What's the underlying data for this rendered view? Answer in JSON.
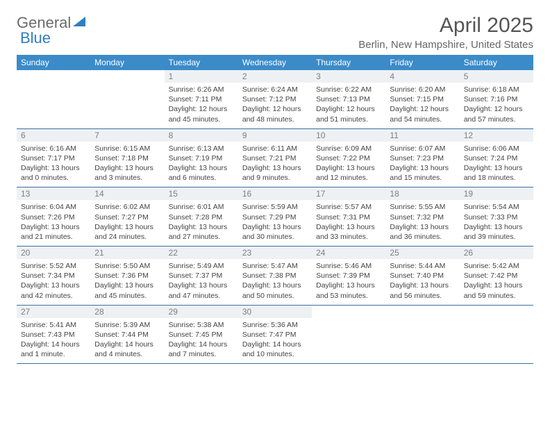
{
  "brand": {
    "part1": "General",
    "part2": "Blue"
  },
  "title": "April 2025",
  "location": "Berlin, New Hampshire, United States",
  "colors": {
    "header_bg": "#3b8bc9",
    "header_text": "#ffffff",
    "daynum_bg": "#eef1f3",
    "daynum_text": "#7a7f85",
    "cell_border": "#3b6fa0",
    "body_text": "#444444",
    "title_text": "#555555",
    "logo_gray": "#6b6b6b",
    "logo_blue": "#2f7fc2"
  },
  "days_of_week": [
    "Sunday",
    "Monday",
    "Tuesday",
    "Wednesday",
    "Thursday",
    "Friday",
    "Saturday"
  ],
  "weeks": [
    [
      null,
      null,
      {
        "n": "1",
        "sr": "Sunrise: 6:26 AM",
        "ss": "Sunset: 7:11 PM",
        "dl1": "Daylight: 12 hours",
        "dl2": "and 45 minutes."
      },
      {
        "n": "2",
        "sr": "Sunrise: 6:24 AM",
        "ss": "Sunset: 7:12 PM",
        "dl1": "Daylight: 12 hours",
        "dl2": "and 48 minutes."
      },
      {
        "n": "3",
        "sr": "Sunrise: 6:22 AM",
        "ss": "Sunset: 7:13 PM",
        "dl1": "Daylight: 12 hours",
        "dl2": "and 51 minutes."
      },
      {
        "n": "4",
        "sr": "Sunrise: 6:20 AM",
        "ss": "Sunset: 7:15 PM",
        "dl1": "Daylight: 12 hours",
        "dl2": "and 54 minutes."
      },
      {
        "n": "5",
        "sr": "Sunrise: 6:18 AM",
        "ss": "Sunset: 7:16 PM",
        "dl1": "Daylight: 12 hours",
        "dl2": "and 57 minutes."
      }
    ],
    [
      {
        "n": "6",
        "sr": "Sunrise: 6:16 AM",
        "ss": "Sunset: 7:17 PM",
        "dl1": "Daylight: 13 hours",
        "dl2": "and 0 minutes."
      },
      {
        "n": "7",
        "sr": "Sunrise: 6:15 AM",
        "ss": "Sunset: 7:18 PM",
        "dl1": "Daylight: 13 hours",
        "dl2": "and 3 minutes."
      },
      {
        "n": "8",
        "sr": "Sunrise: 6:13 AM",
        "ss": "Sunset: 7:19 PM",
        "dl1": "Daylight: 13 hours",
        "dl2": "and 6 minutes."
      },
      {
        "n": "9",
        "sr": "Sunrise: 6:11 AM",
        "ss": "Sunset: 7:21 PM",
        "dl1": "Daylight: 13 hours",
        "dl2": "and 9 minutes."
      },
      {
        "n": "10",
        "sr": "Sunrise: 6:09 AM",
        "ss": "Sunset: 7:22 PM",
        "dl1": "Daylight: 13 hours",
        "dl2": "and 12 minutes."
      },
      {
        "n": "11",
        "sr": "Sunrise: 6:07 AM",
        "ss": "Sunset: 7:23 PM",
        "dl1": "Daylight: 13 hours",
        "dl2": "and 15 minutes."
      },
      {
        "n": "12",
        "sr": "Sunrise: 6:06 AM",
        "ss": "Sunset: 7:24 PM",
        "dl1": "Daylight: 13 hours",
        "dl2": "and 18 minutes."
      }
    ],
    [
      {
        "n": "13",
        "sr": "Sunrise: 6:04 AM",
        "ss": "Sunset: 7:26 PM",
        "dl1": "Daylight: 13 hours",
        "dl2": "and 21 minutes."
      },
      {
        "n": "14",
        "sr": "Sunrise: 6:02 AM",
        "ss": "Sunset: 7:27 PM",
        "dl1": "Daylight: 13 hours",
        "dl2": "and 24 minutes."
      },
      {
        "n": "15",
        "sr": "Sunrise: 6:01 AM",
        "ss": "Sunset: 7:28 PM",
        "dl1": "Daylight: 13 hours",
        "dl2": "and 27 minutes."
      },
      {
        "n": "16",
        "sr": "Sunrise: 5:59 AM",
        "ss": "Sunset: 7:29 PM",
        "dl1": "Daylight: 13 hours",
        "dl2": "and 30 minutes."
      },
      {
        "n": "17",
        "sr": "Sunrise: 5:57 AM",
        "ss": "Sunset: 7:31 PM",
        "dl1": "Daylight: 13 hours",
        "dl2": "and 33 minutes."
      },
      {
        "n": "18",
        "sr": "Sunrise: 5:55 AM",
        "ss": "Sunset: 7:32 PM",
        "dl1": "Daylight: 13 hours",
        "dl2": "and 36 minutes."
      },
      {
        "n": "19",
        "sr": "Sunrise: 5:54 AM",
        "ss": "Sunset: 7:33 PM",
        "dl1": "Daylight: 13 hours",
        "dl2": "and 39 minutes."
      }
    ],
    [
      {
        "n": "20",
        "sr": "Sunrise: 5:52 AM",
        "ss": "Sunset: 7:34 PM",
        "dl1": "Daylight: 13 hours",
        "dl2": "and 42 minutes."
      },
      {
        "n": "21",
        "sr": "Sunrise: 5:50 AM",
        "ss": "Sunset: 7:36 PM",
        "dl1": "Daylight: 13 hours",
        "dl2": "and 45 minutes."
      },
      {
        "n": "22",
        "sr": "Sunrise: 5:49 AM",
        "ss": "Sunset: 7:37 PM",
        "dl1": "Daylight: 13 hours",
        "dl2": "and 47 minutes."
      },
      {
        "n": "23",
        "sr": "Sunrise: 5:47 AM",
        "ss": "Sunset: 7:38 PM",
        "dl1": "Daylight: 13 hours",
        "dl2": "and 50 minutes."
      },
      {
        "n": "24",
        "sr": "Sunrise: 5:46 AM",
        "ss": "Sunset: 7:39 PM",
        "dl1": "Daylight: 13 hours",
        "dl2": "and 53 minutes."
      },
      {
        "n": "25",
        "sr": "Sunrise: 5:44 AM",
        "ss": "Sunset: 7:40 PM",
        "dl1": "Daylight: 13 hours",
        "dl2": "and 56 minutes."
      },
      {
        "n": "26",
        "sr": "Sunrise: 5:42 AM",
        "ss": "Sunset: 7:42 PM",
        "dl1": "Daylight: 13 hours",
        "dl2": "and 59 minutes."
      }
    ],
    [
      {
        "n": "27",
        "sr": "Sunrise: 5:41 AM",
        "ss": "Sunset: 7:43 PM",
        "dl1": "Daylight: 14 hours",
        "dl2": "and 1 minute."
      },
      {
        "n": "28",
        "sr": "Sunrise: 5:39 AM",
        "ss": "Sunset: 7:44 PM",
        "dl1": "Daylight: 14 hours",
        "dl2": "and 4 minutes."
      },
      {
        "n": "29",
        "sr": "Sunrise: 5:38 AM",
        "ss": "Sunset: 7:45 PM",
        "dl1": "Daylight: 14 hours",
        "dl2": "and 7 minutes."
      },
      {
        "n": "30",
        "sr": "Sunrise: 5:36 AM",
        "ss": "Sunset: 7:47 PM",
        "dl1": "Daylight: 14 hours",
        "dl2": "and 10 minutes."
      },
      null,
      null,
      null
    ]
  ]
}
